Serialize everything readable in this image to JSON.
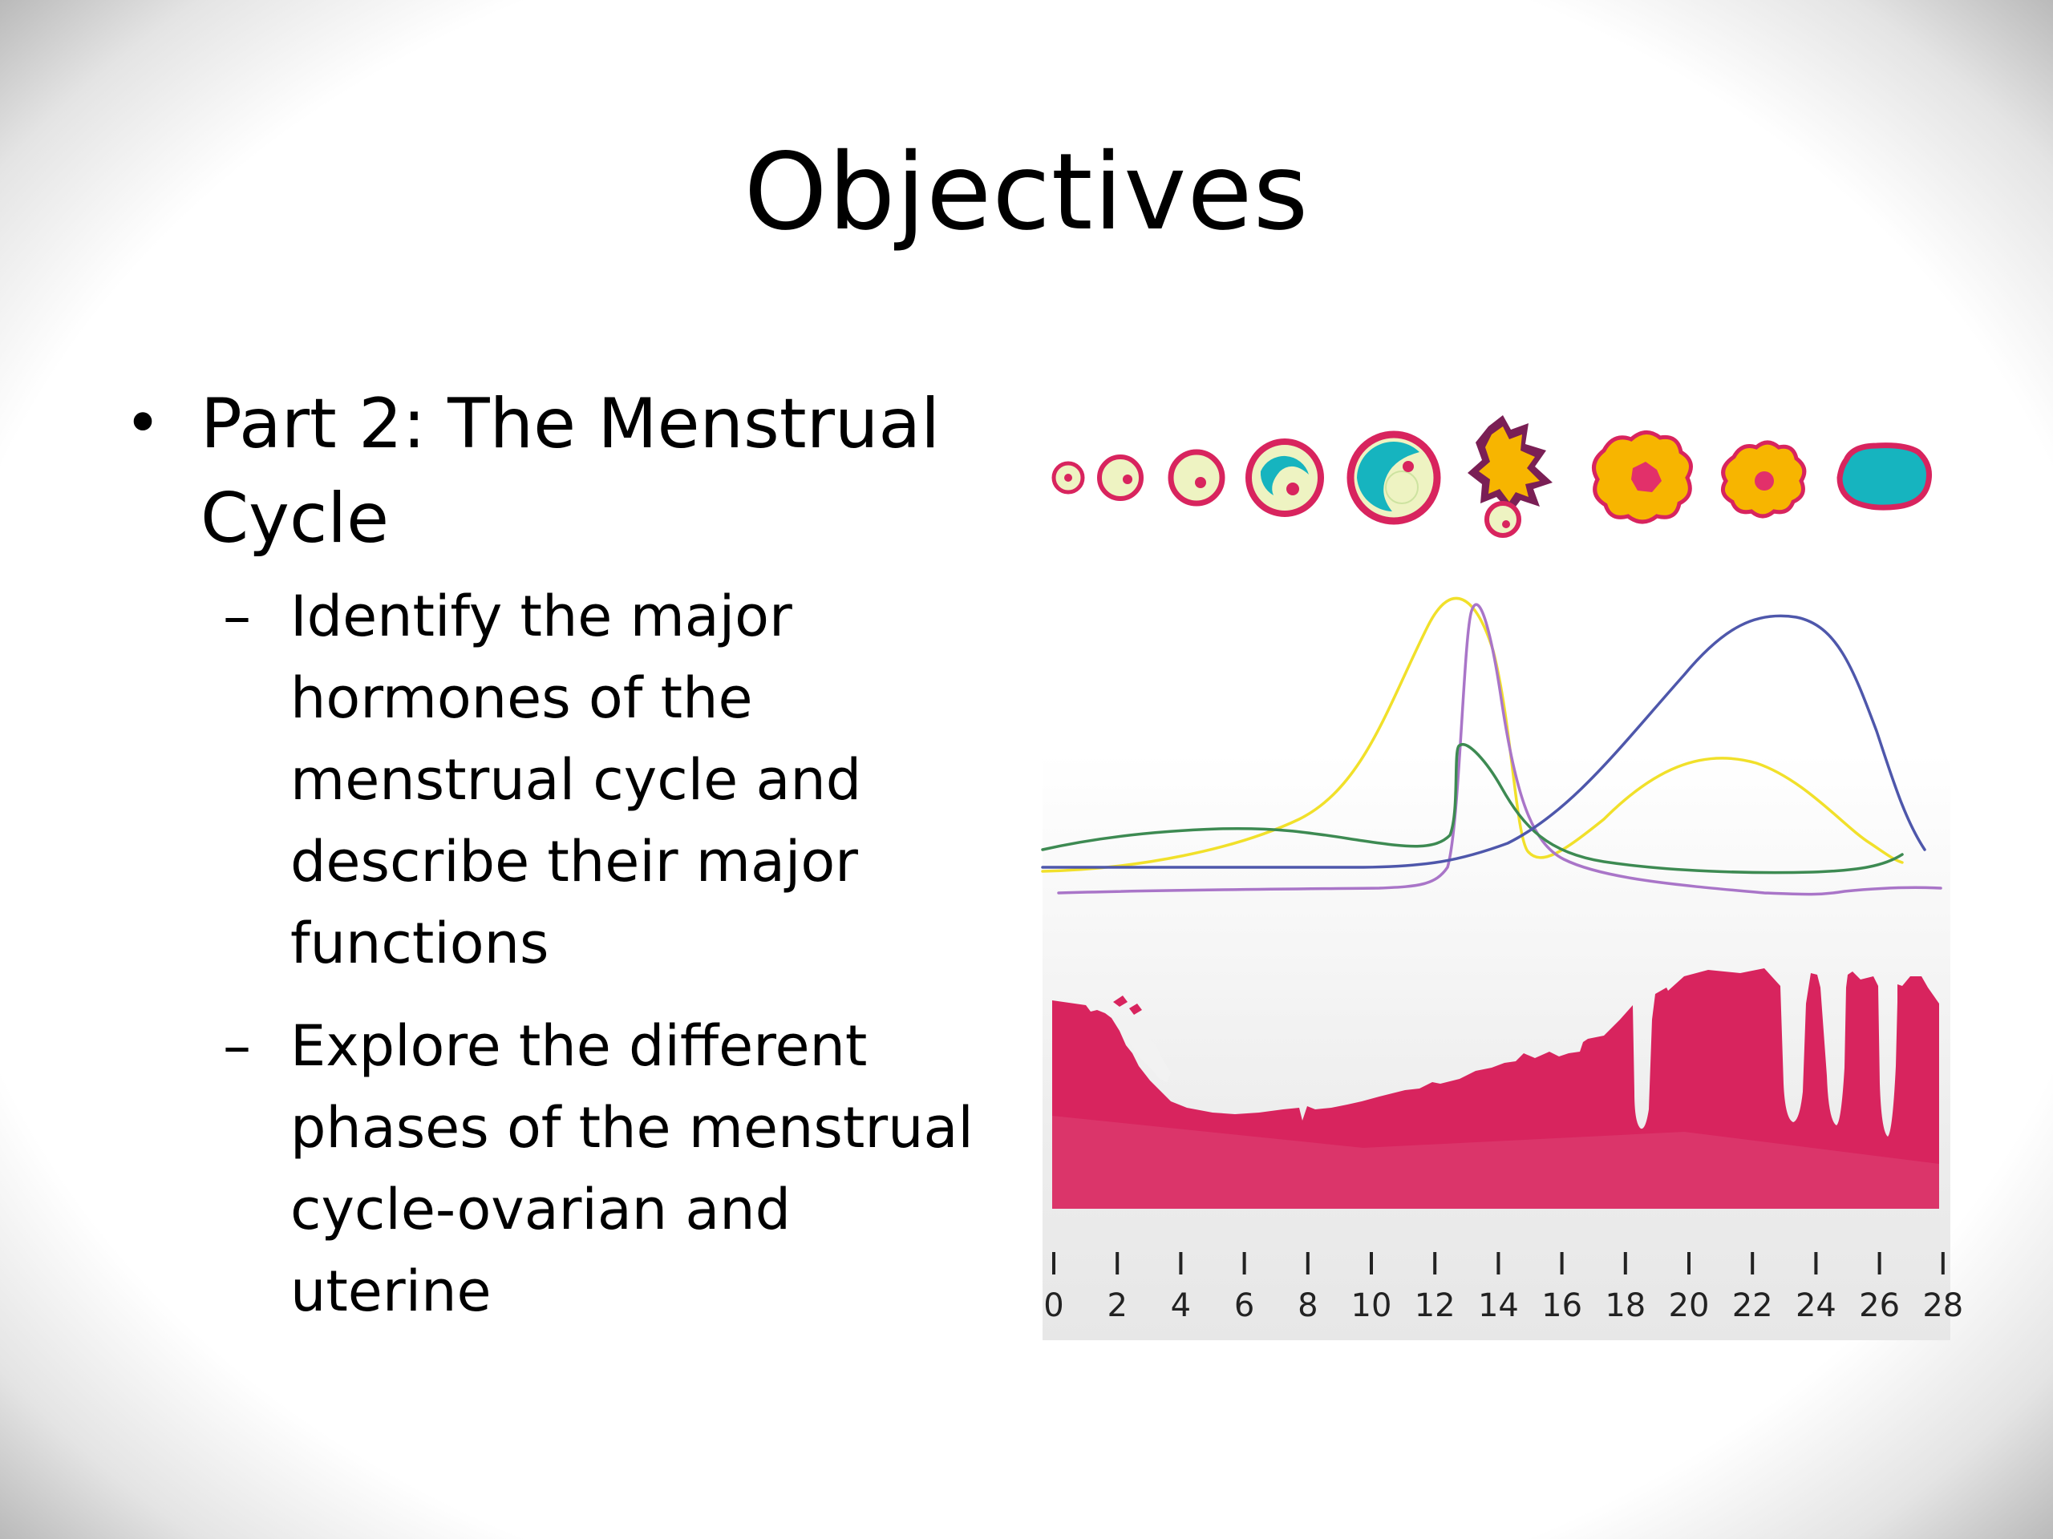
{
  "slide": {
    "title": "Objectives",
    "bullets": [
      {
        "text": "Part 2: The Menstrual Cycle",
        "subbullets": [
          "Identify the major hormones of the menstrual cycle and describe their major functions",
          "Explore the different phases of the menstrual cycle-ovarian and uterine"
        ]
      }
    ]
  },
  "figure": {
    "x_ticks": [
      "0",
      "2",
      "4",
      "6",
      "8",
      "10",
      "12",
      "14",
      "16",
      "18",
      "20",
      "22",
      "24",
      "26",
      "28"
    ],
    "colors": {
      "endometrium": "#d8245e",
      "follicle_fill": "#eef3c2",
      "antrum": "#16b4bf",
      "corpus_luteum": "#f7b500",
      "curve_yellow": "#f1e02a",
      "curve_violet": "#a975c8",
      "curve_green": "#3d8a52",
      "curve_blue": "#4e57ab"
    }
  }
}
